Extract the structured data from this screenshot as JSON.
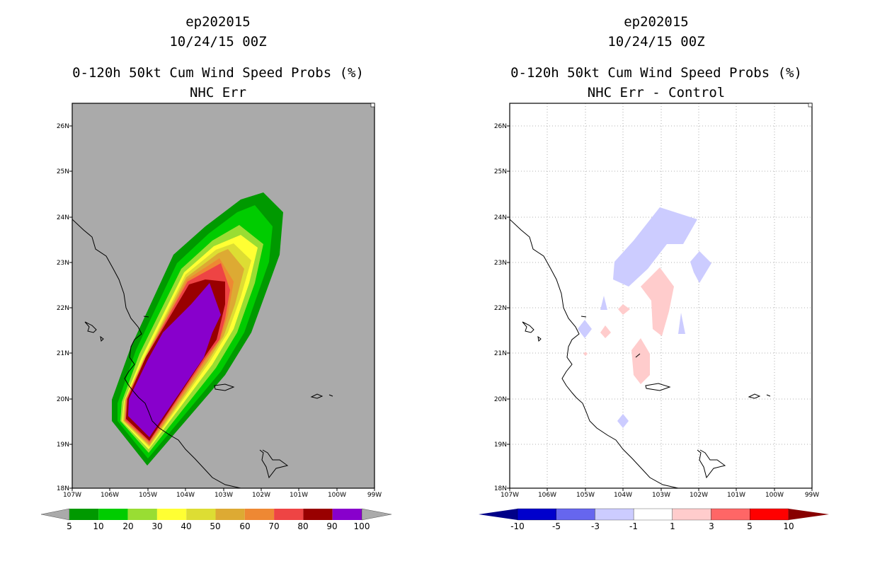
{
  "left_panel": {
    "storm_id": "ep202015",
    "datetime": "10/24/15 00Z",
    "product": "0-120h 50kt Cum Wind Speed Probs (%)",
    "subtitle": "NHC Err",
    "background_color": "#aaaaaa",
    "colorbar": {
      "labels": [
        "5",
        "10",
        "20",
        "30",
        "40",
        "50",
        "60",
        "70",
        "80",
        "90",
        "100"
      ],
      "colors": [
        "#009900",
        "#00cc00",
        "#99dd33",
        "#ffff33",
        "#dddd33",
        "#ddaa33",
        "#ee8833",
        "#ee4444",
        "#990000",
        "#8800cc"
      ],
      "ext_low": "#aaaaaa",
      "ext_high": "#aaaaaa"
    }
  },
  "right_panel": {
    "storm_id": "ep202015",
    "datetime": "10/24/15 00Z",
    "product": "0-120h 50kt Cum Wind Speed Probs (%)",
    "subtitle": "NHC Err - Control",
    "background_color": "#ffffff",
    "colorbar": {
      "labels": [
        "-10",
        "-5",
        "-3",
        "-1",
        "1",
        "3",
        "5",
        "10"
      ],
      "colors": [
        "#0000cc",
        "#6666ee",
        "#ccccff",
        "#ffffff",
        "#ffcccc",
        "#ff6666",
        "#ff0000"
      ],
      "ext_low": "#000088",
      "ext_high": "#880000"
    }
  },
  "axes": {
    "lon_labels": [
      "107W",
      "106W",
      "105W",
      "104W",
      "103W",
      "102W",
      "101W",
      "100W",
      "99W"
    ],
    "lat_labels": [
      "18N",
      "19N",
      "20N",
      "21N",
      "22N",
      "23N",
      "24N",
      "25N",
      "26N"
    ],
    "lon_range": [
      -107,
      -99
    ],
    "lat_range": [
      18,
      26.5
    ]
  }
}
